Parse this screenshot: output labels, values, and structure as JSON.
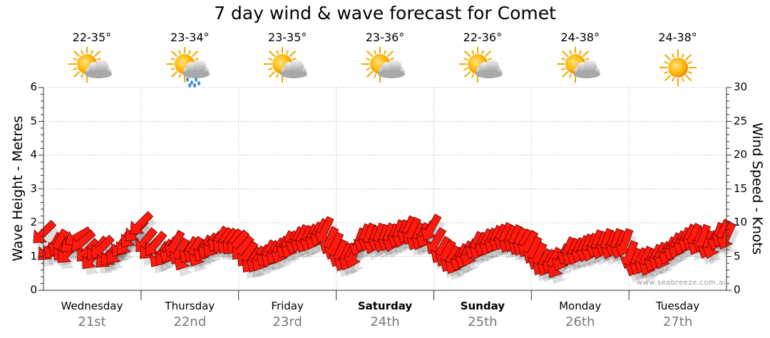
{
  "chart_data": {
    "type": "line",
    "title": "7 day wind & wave forecast for Comet",
    "y_left": {
      "label": "Wave Height - Metres",
      "min": 0,
      "max": 6,
      "ticks": [
        "0",
        "1",
        "2",
        "3",
        "4",
        "5",
        "6"
      ]
    },
    "y_right": {
      "label": "Wind Speed - Knots",
      "min": 0,
      "max": 30,
      "ticks": [
        "0",
        "5",
        "10",
        "15",
        "20",
        "25",
        "30"
      ]
    },
    "days": [
      {
        "name": "Wednesday",
        "date": "21st",
        "temp": "22-35°",
        "icon": "sun-cloud-icon",
        "bold": false
      },
      {
        "name": "Thursday",
        "date": "22nd",
        "temp": "23-34°",
        "icon": "sun-cloud-rain-icon",
        "bold": false
      },
      {
        "name": "Friday",
        "date": "23rd",
        "temp": "23-35°",
        "icon": "sun-cloud-icon",
        "bold": false
      },
      {
        "name": "Saturday",
        "date": "24th",
        "temp": "23-36°",
        "icon": "sun-cloud-icon",
        "bold": true
      },
      {
        "name": "Sunday",
        "date": "25th",
        "temp": "22-36°",
        "icon": "sun-cloud-icon",
        "bold": true
      },
      {
        "name": "Monday",
        "date": "26th",
        "temp": "24-38°",
        "icon": "sun-cloud-icon",
        "bold": false
      },
      {
        "name": "Tuesday",
        "date": "27th",
        "temp": "24-38°",
        "icon": "sun-icon",
        "bold": false
      }
    ],
    "wind_knots": [
      8.5,
      6.0,
      6.5,
      7.0,
      6.2,
      5.6,
      7.0,
      7.9,
      7.2,
      5.8,
      4.8,
      6.1,
      6.3,
      4.9,
      5.2,
      5.6,
      6.7,
      7.0,
      8.0,
      8.8,
      9.8,
      7.3,
      6.2,
      6.8,
      5.2,
      5.5,
      5.9,
      6.8,
      5.7,
      4.8,
      5.9,
      5.9,
      5.4,
      6.1,
      6.5,
      6.7,
      7.5,
      7.3,
      7.2,
      7.1,
      7.0,
      6.2,
      5.3,
      4.4,
      4.5,
      4.7,
      5.4,
      5.3,
      5.7,
      5.9,
      6.7,
      6.7,
      7.3,
      7.6,
      7.5,
      7.7,
      8.0,
      8.5,
      8.8,
      7.3,
      6.5,
      5.4,
      4.8,
      4.9,
      5.3,
      7.1,
      7.7,
      7.8,
      7.4,
      7.8,
      7.6,
      7.8,
      7.7,
      8.3,
      8.3,
      8.9,
      8.7,
      7.9,
      7.9,
      8.2,
      9.2,
      7.2,
      5.9,
      5.4,
      4.6,
      4.3,
      4.8,
      5.2,
      5.5,
      6.6,
      6.5,
      7.0,
      7.1,
      7.5,
      7.7,
      7.9,
      7.5,
      7.6,
      7.2,
      7.0,
      6.8,
      5.9,
      5.0,
      4.1,
      4.0,
      4.3,
      3.7,
      4.8,
      5.8,
      5.6,
      5.7,
      6.0,
      6.2,
      6.3,
      6.8,
      6.6,
      7.0,
      6.6,
      7.0,
      6.7,
      7.0,
      5.2,
      4.1,
      4.2,
      4.4,
      4.1,
      4.7,
      5.0,
      5.1,
      5.8,
      6.4,
      6.7,
      7.2,
      7.7,
      7.8,
      7.2,
      7.6,
      6.7,
      6.7,
      7.9,
      8.4,
      8.0
    ],
    "wind_direction_deg": [
      135,
      135,
      120,
      120,
      125,
      135,
      145,
      150,
      140,
      135,
      130,
      130,
      135,
      135,
      135,
      130,
      125,
      125,
      130,
      135,
      135,
      130,
      135,
      130,
      125,
      120,
      120,
      120,
      120,
      120,
      120,
      120,
      120,
      120,
      125,
      125,
      125,
      125,
      125,
      125,
      130,
      130,
      125,
      125,
      120,
      120,
      120,
      120,
      120,
      115,
      115,
      115,
      115,
      115,
      115,
      115,
      115,
      115,
      115,
      115,
      115,
      115,
      115,
      115,
      110,
      110,
      110,
      110,
      110,
      110,
      110,
      110,
      110,
      110,
      110,
      115,
      115,
      115,
      115,
      120,
      120,
      120,
      120,
      120,
      120,
      120,
      115,
      115,
      115,
      115,
      115,
      115,
      115,
      115,
      115,
      115,
      115,
      115,
      115,
      120,
      120,
      115,
      115,
      120,
      120,
      120,
      120,
      115,
      115,
      115,
      115,
      115,
      110,
      110,
      110,
      110,
      110,
      110,
      110,
      110,
      110,
      110,
      110,
      115,
      115,
      115,
      115,
      115,
      115,
      115,
      115,
      115,
      115,
      115,
      115,
      115,
      110,
      110,
      110,
      110,
      115,
      115
    ],
    "grid": true,
    "credit": "www.seabreeze.com.au"
  }
}
